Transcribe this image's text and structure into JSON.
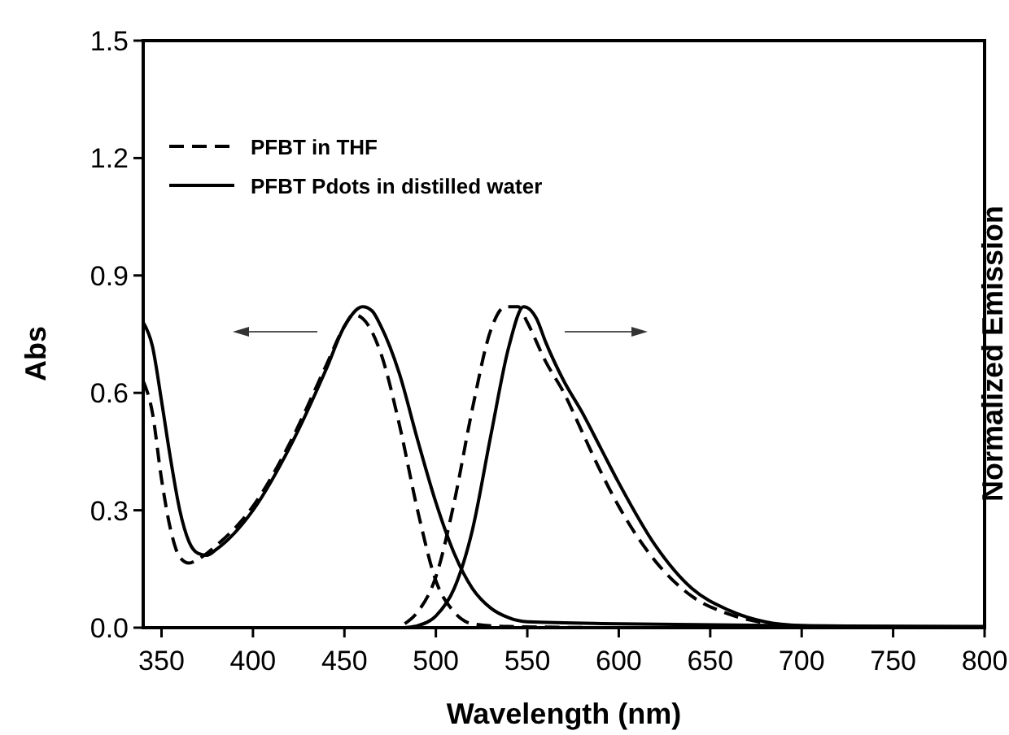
{
  "chart_data": {
    "type": "line",
    "xlabel": "Wavelength (nm)",
    "ylabel": "Abs",
    "y2label": "Normalized Emission",
    "xlim": [
      340,
      800
    ],
    "xticks": [
      350,
      400,
      450,
      500,
      550,
      600,
      650,
      700,
      750,
      800
    ],
    "ylim": [
      0,
      1.5
    ],
    "yticks": [
      {
        "value": 0,
        "label": "0.0"
      },
      0.3,
      0.6,
      0.9,
      1.2,
      1.5
    ],
    "legend": "top left",
    "grid": false,
    "series": [
      {
        "name": "PFBT in THF",
        "color": "#000000",
        "line_style": "dashed",
        "x": [
          340,
          345,
          350,
          355,
          360,
          365,
          370,
          380,
          400,
          420,
          440,
          450,
          455,
          460,
          470,
          480,
          490,
          500,
          510,
          520,
          540,
          600,
          700,
          800
        ],
        "values": [
          0.63,
          0.55,
          0.38,
          0.25,
          0.18,
          0.165,
          0.175,
          0.21,
          0.31,
          0.47,
          0.67,
          0.77,
          0.8,
          0.79,
          0.7,
          0.52,
          0.3,
          0.12,
          0.04,
          0.01,
          0.003,
          0,
          0,
          0
        ]
      },
      {
        "name": "PFBT Pdots in distilled water",
        "color": "#000000",
        "line_style": "solid",
        "x": [
          340,
          345,
          350,
          355,
          360,
          365,
          370,
          375,
          380,
          400,
          420,
          440,
          450,
          460,
          465,
          470,
          480,
          490,
          500,
          510,
          520,
          530,
          540,
          550,
          600,
          700,
          800
        ],
        "values": [
          0.78,
          0.72,
          0.58,
          0.43,
          0.3,
          0.22,
          0.19,
          0.185,
          0.2,
          0.3,
          0.46,
          0.66,
          0.77,
          0.82,
          0.81,
          0.77,
          0.65,
          0.48,
          0.32,
          0.19,
          0.1,
          0.05,
          0.025,
          0.015,
          0.01,
          0.005,
          0.003
        ]
      },
      {
        "color": "#000000",
        "line_style": "dashed",
        "x": [
          483,
          490,
          500,
          510,
          520,
          530,
          538,
          545,
          550,
          560,
          570,
          580,
          590,
          600,
          620,
          640,
          660,
          680,
          700,
          750,
          800
        ],
        "values": [
          0.01,
          0.04,
          0.13,
          0.32,
          0.56,
          0.76,
          0.82,
          0.82,
          0.78,
          0.68,
          0.6,
          0.5,
          0.4,
          0.31,
          0.17,
          0.08,
          0.035,
          0.012,
          0.003,
          0,
          0
        ]
      },
      {
        "color": "#000000",
        "line_style": "solid",
        "x": [
          483,
          490,
          500,
          510,
          520,
          530,
          540,
          548,
          555,
          560,
          570,
          580,
          590,
          600,
          620,
          640,
          660,
          680,
          700,
          750,
          800
        ],
        "values": [
          0,
          0.005,
          0.03,
          0.1,
          0.25,
          0.49,
          0.72,
          0.82,
          0.79,
          0.73,
          0.63,
          0.55,
          0.46,
          0.37,
          0.21,
          0.1,
          0.045,
          0.015,
          0.005,
          0,
          0
        ]
      }
    ]
  }
}
